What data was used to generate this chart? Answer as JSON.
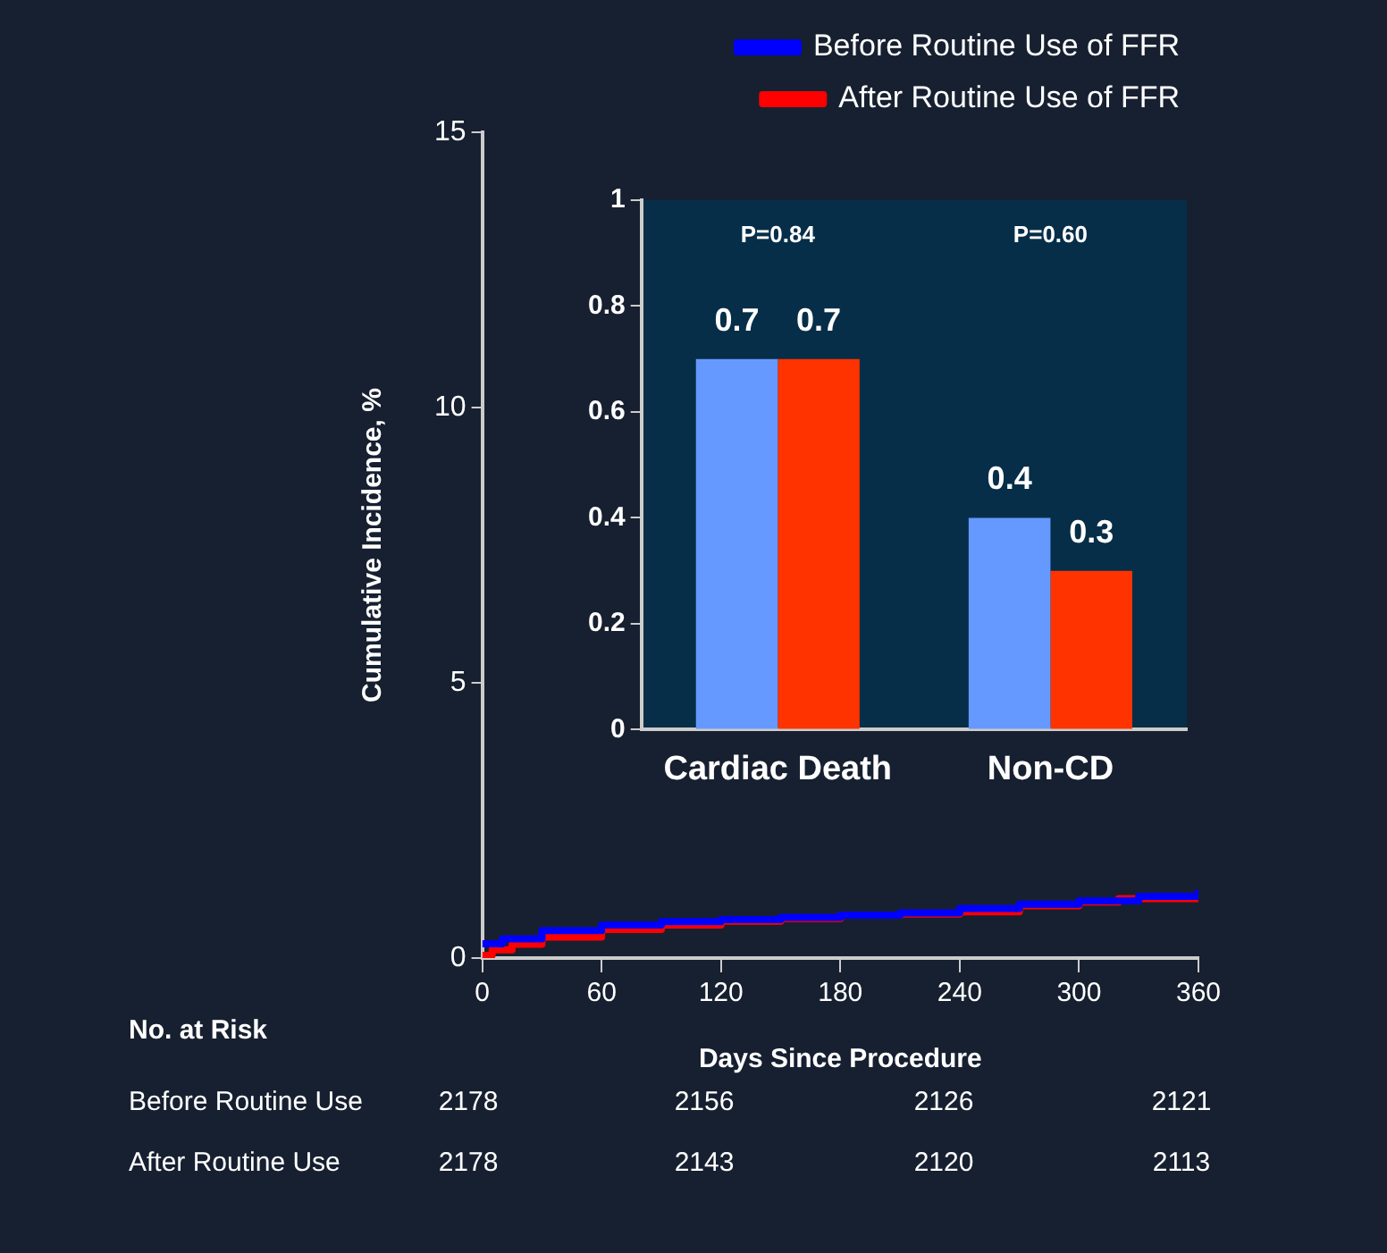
{
  "chart_data": [
    {
      "type": "step",
      "xlabel": "Days Since Procedure",
      "ylabel": "Cumulative Incidence, %",
      "xlim": [
        0,
        360
      ],
      "xticks": [
        0,
        60,
        120,
        180,
        240,
        300,
        360
      ],
      "ylim": [
        0,
        15
      ],
      "yticks": [
        0,
        5,
        10,
        15
      ],
      "grid": false,
      "legend": "top",
      "marker": "none",
      "series": [
        {
          "name": "Before Routine Use of FFR",
          "color": "#0000ff",
          "x": [
            0,
            10,
            30,
            60,
            90,
            120,
            150,
            180,
            210,
            240,
            270,
            300,
            330,
            360
          ],
          "values": [
            0.26,
            0.35,
            0.5,
            0.6,
            0.66,
            0.7,
            0.74,
            0.78,
            0.82,
            0.9,
            0.98,
            1.04,
            1.12,
            1.24
          ]
        },
        {
          "name": "After Routine Use of FFR",
          "color": "#ff0000",
          "x": [
            0,
            5,
            15,
            30,
            60,
            90,
            120,
            150,
            180,
            210,
            240,
            270,
            300,
            320,
            360
          ],
          "values": [
            0.05,
            0.15,
            0.25,
            0.38,
            0.52,
            0.6,
            0.67,
            0.72,
            0.78,
            0.8,
            0.84,
            0.95,
            1.02,
            1.08,
            1.12
          ]
        }
      ],
      "annotations": [
        "No. at Risk",
        "Before Routine Use",
        "2178",
        "2156",
        "2126",
        "2121",
        "After Routine Use",
        "2178",
        "2143",
        "2120",
        "2113"
      ]
    },
    {
      "type": "bar",
      "categories": [
        "Cardiac Death",
        "Non-CD"
      ],
      "ylim": [
        0,
        1
      ],
      "yticks": [
        0,
        0.2,
        0.4,
        0.6,
        0.8,
        1
      ],
      "grid": false,
      "legend": false,
      "data_labels": true,
      "series": [
        {
          "color": "#6699ff",
          "values": [
            0.7,
            0.4
          ]
        },
        {
          "color": "#ff3300",
          "values": [
            0.7,
            0.3
          ]
        }
      ],
      "annotations": [
        "P=0.84",
        "P=0.60"
      ]
    }
  ]
}
